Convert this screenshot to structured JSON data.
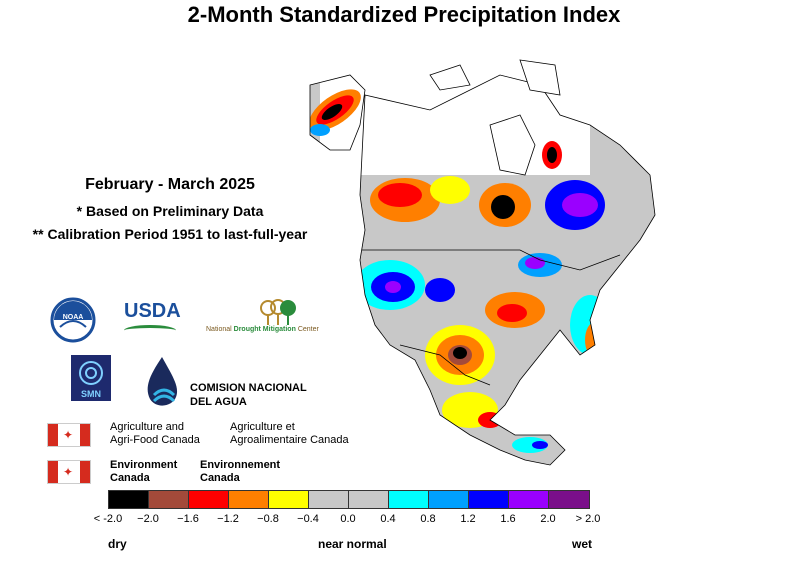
{
  "title": "2-Month Standardized Precipitation Index",
  "period": "February - March 2025",
  "note_preliminary": "* Based on Preliminary Data",
  "note_calibration": "** Calibration Period 1951 to last-full-year",
  "logos": {
    "noaa": "NOAA",
    "usda": "USDA",
    "ndmc_prefix": "National",
    "ndmc_main": "Drought Mitigation",
    "ndmc_suffix": "Center",
    "smn": "SMN",
    "conagua_line1": "COMISION NACIONAL",
    "conagua_line2": "DEL AGUA",
    "aafc_en_line1": "Agriculture and",
    "aafc_en_line2": "Agri-Food Canada",
    "aafc_fr_line1": "Agriculture et",
    "aafc_fr_line2": "Agroalimentaire Canada",
    "ec_en_line1": "Environment",
    "ec_en_line2": "Canada",
    "ec_fr_line1": "Environnement",
    "ec_fr_line2": "Canada"
  },
  "legend": {
    "colors": [
      "#000000",
      "#a34a3a",
      "#ff0000",
      "#ff7f00",
      "#ffff00",
      "#c8c8c8",
      "#c8c8c8",
      "#00ffff",
      "#00a0ff",
      "#0000ff",
      "#9a00ff",
      "#7a0f8a"
    ],
    "tick_labels": [
      "< -2.0",
      "−2.0",
      "−1.6",
      "−1.2",
      "−0.8",
      "−0.4",
      "0.0",
      "0.4",
      "0.8",
      "1.2",
      "1.6",
      "2.0",
      "> 2.0"
    ],
    "dry_label": "dry",
    "normal_label": "near normal",
    "wet_label": "wet"
  }
}
